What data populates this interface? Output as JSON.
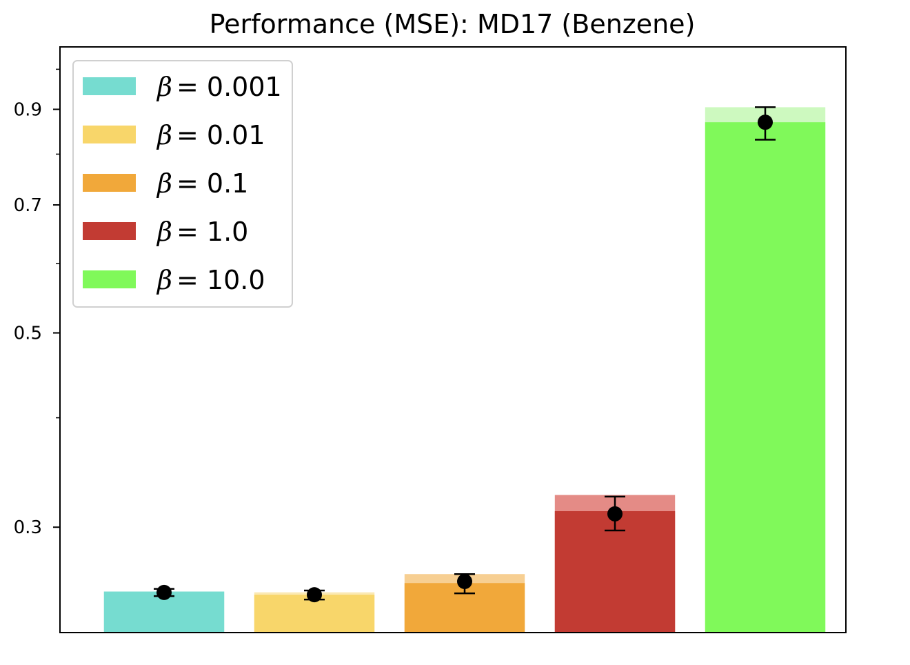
{
  "chart_data": {
    "type": "bar",
    "title": "Performance (MSE): MD17 (Benzene)",
    "xlabel": "",
    "ylabel": "",
    "y_scale": "log",
    "ylim": [
      0.2274,
      1.0605
    ],
    "y_major_ticks": [
      0.3,
      0.5,
      0.7,
      0.9
    ],
    "y_major_tick_labels": [
      "0.3",
      "0.5",
      "0.7",
      "0.9"
    ],
    "y_minor_ticks": [
      0.4,
      0.6,
      0.8,
      1.0
    ],
    "grid": false,
    "legend_position": "top-left",
    "series": [
      {
        "name": "β = 0.001",
        "legend_symbol": "β",
        "legend_value": "0.001",
        "color": "#76dcd0",
        "light_color": "#bcefe8",
        "bar_top": 0.2533,
        "overlay_top": 0.2533,
        "mean": 0.2527,
        "err_low": 0.2503,
        "err_high": 0.2551
      },
      {
        "name": "β = 0.01",
        "legend_symbol": "β",
        "legend_value": "0.01",
        "color": "#f8d66a",
        "light_color": "#fbe9b3",
        "bar_top": 0.2528,
        "overlay_top": 0.2512,
        "mean": 0.2512,
        "err_low": 0.248,
        "err_high": 0.254
      },
      {
        "name": "β = 0.1",
        "legend_symbol": "β",
        "legend_value": "0.1",
        "color": "#f1a83a",
        "light_color": "#f7cf92",
        "bar_top": 0.2652,
        "overlay_top": 0.259,
        "mean": 0.2601,
        "err_low": 0.2521,
        "err_high": 0.2652
      },
      {
        "name": "β = 1.0",
        "legend_symbol": "β",
        "legend_value": "1.0",
        "color": "#c23b33",
        "light_color": "#e48b86",
        "bar_top": 0.3265,
        "overlay_top": 0.3129,
        "mean": 0.3107,
        "err_low": 0.2974,
        "err_high": 0.3251
      },
      {
        "name": "β = 10.0",
        "legend_symbol": "β",
        "legend_value": "10.0",
        "color": "#80f95a",
        "light_color": "#cdf9bf",
        "bar_top": 0.905,
        "overlay_top": 0.87,
        "mean": 0.87,
        "err_low": 0.831,
        "err_high": 0.905
      }
    ]
  }
}
